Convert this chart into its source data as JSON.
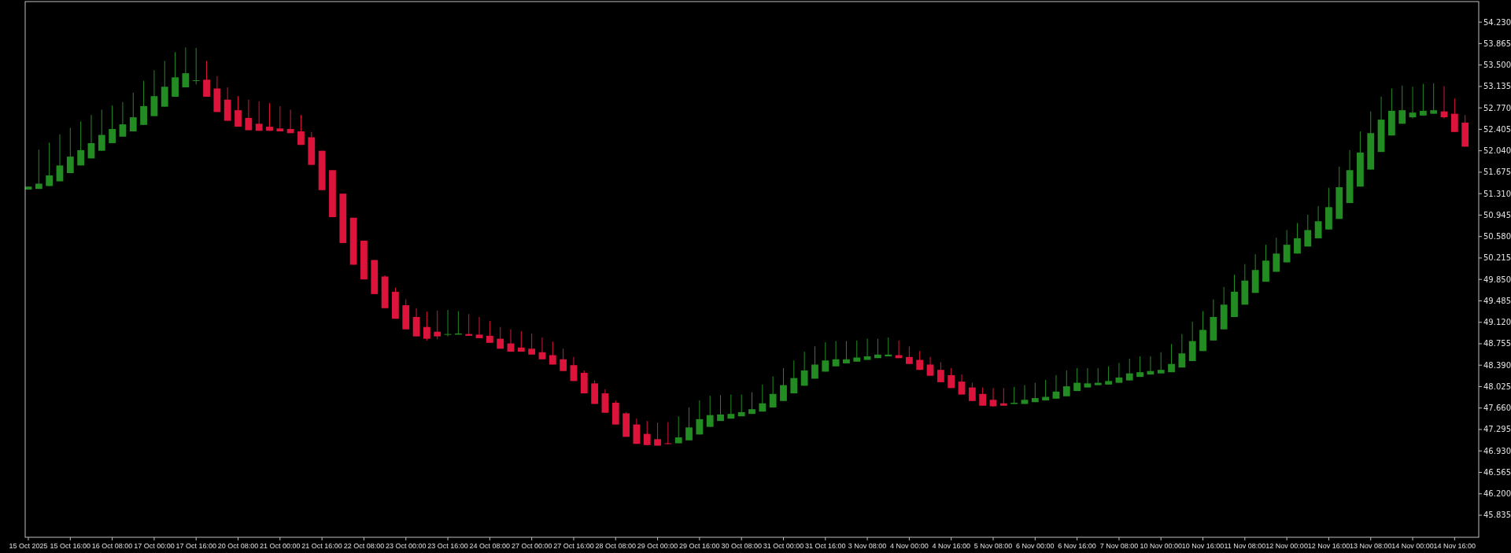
{
  "chart_data": {
    "type": "candlestick",
    "categories": [
      "15 Oct 2025",
      null,
      null,
      null,
      "15 Oct 16:00",
      null,
      null,
      null,
      "16 Oct 08:00",
      null,
      null,
      null,
      "17 Oct 00:00",
      null,
      null,
      null,
      "17 Oct 16:00",
      null,
      null,
      null,
      "20 Oct 08:00",
      null,
      null,
      null,
      "21 Oct 00:00",
      null,
      null,
      null,
      "21 Oct 16:00",
      null,
      null,
      null,
      "22 Oct 08:00",
      null,
      null,
      null,
      "23 Oct 00:00",
      null,
      null,
      null,
      "23 Oct 16:00",
      null,
      null,
      null,
      "24 Oct 08:00",
      null,
      null,
      null,
      "27 Oct 00:00",
      null,
      null,
      null,
      "27 Oct 16:00",
      null,
      null,
      null,
      "28 Oct 08:00",
      null,
      null,
      null,
      "29 Oct 00:00",
      null,
      null,
      null,
      "29 Oct 16:00",
      null,
      null,
      null,
      "30 Oct 08:00",
      null,
      null,
      null,
      "31 Oct 00:00",
      null,
      null,
      null,
      "31 Oct 16:00",
      null,
      null,
      null,
      "3 Nov 08:00",
      null,
      null,
      null,
      "4 Nov 00:00",
      null,
      null,
      null,
      "4 Nov 16:00",
      null,
      null,
      null,
      "5 Nov 08:00",
      null,
      null,
      null,
      "6 Nov 00:00",
      null,
      null,
      null,
      "6 Nov 16:00",
      null,
      null,
      null,
      "7 Nov 08:00",
      null,
      null,
      null,
      "10 Nov 00:00",
      null,
      null,
      null,
      "10 Nov 16:00",
      null,
      null,
      null,
      "11 Nov 08:00",
      null,
      null,
      null,
      "12 Nov 00:00",
      null,
      null,
      null,
      "12 Nov 16:00",
      null,
      null,
      null,
      "13 Nov 08:00",
      null,
      null,
      null,
      "14 Nov 00:00",
      null,
      null,
      null,
      "14 Nov 16:00",
      null
    ],
    "ohlc": [
      [
        51.38,
        51.43,
        51.38,
        51.43
      ],
      [
        51.39,
        52.06,
        51.39,
        51.48
      ],
      [
        51.44,
        52.18,
        51.44,
        51.62
      ],
      [
        51.52,
        52.32,
        51.52,
        51.79
      ],
      [
        51.66,
        52.43,
        51.66,
        51.94
      ],
      [
        51.79,
        52.54,
        51.79,
        52.05
      ],
      [
        51.91,
        52.65,
        51.91,
        52.17
      ],
      [
        52.04,
        52.74,
        52.04,
        52.31
      ],
      [
        52.17,
        52.81,
        52.17,
        52.41
      ],
      [
        52.28,
        52.87,
        52.28,
        52.49
      ],
      [
        52.37,
        53.03,
        52.37,
        52.61
      ],
      [
        52.48,
        53.23,
        52.48,
        52.8
      ],
      [
        52.63,
        53.41,
        52.63,
        52.97
      ],
      [
        52.79,
        53.57,
        52.79,
        53.13
      ],
      [
        52.96,
        53.72,
        52.96,
        53.29
      ],
      [
        53.12,
        53.8,
        53.12,
        53.36
      ],
      [
        53.23,
        53.79,
        53.17,
        53.24
      ],
      [
        53.25,
        53.57,
        52.96,
        52.96
      ],
      [
        53.1,
        53.31,
        52.7,
        52.7
      ],
      [
        52.91,
        53.12,
        52.55,
        52.55
      ],
      [
        52.73,
        52.97,
        52.45,
        52.45
      ],
      [
        52.6,
        52.91,
        52.39,
        52.39
      ],
      [
        52.5,
        52.88,
        52.38,
        52.38
      ],
      [
        52.45,
        52.85,
        52.38,
        52.38
      ],
      [
        52.42,
        52.8,
        52.37,
        52.37
      ],
      [
        52.41,
        52.74,
        52.34,
        52.34
      ],
      [
        52.37,
        52.65,
        52.14,
        52.14
      ],
      [
        52.27,
        52.36,
        51.8,
        51.8
      ],
      [
        52.04,
        52.04,
        51.37,
        51.37
      ],
      [
        51.71,
        51.71,
        50.91,
        50.91
      ],
      [
        51.31,
        51.31,
        50.47,
        50.47
      ],
      [
        50.9,
        50.9,
        50.1,
        50.1
      ],
      [
        50.51,
        50.51,
        49.85,
        49.85
      ],
      [
        50.18,
        50.18,
        49.6,
        49.6
      ],
      [
        49.9,
        49.92,
        49.36,
        49.36
      ],
      [
        49.64,
        49.71,
        49.18,
        49.18
      ],
      [
        49.41,
        49.51,
        49.0,
        49.0
      ],
      [
        49.21,
        49.36,
        48.88,
        48.88
      ],
      [
        49.04,
        49.3,
        48.81,
        48.84
      ],
      [
        48.96,
        49.32,
        48.83,
        48.88
      ],
      [
        48.91,
        49.33,
        48.88,
        48.92
      ],
      [
        48.91,
        49.31,
        48.91,
        48.93
      ],
      [
        48.92,
        49.26,
        48.89,
        48.89
      ],
      [
        48.91,
        49.21,
        48.85,
        48.85
      ],
      [
        48.89,
        49.14,
        48.77,
        48.77
      ],
      [
        48.84,
        49.04,
        48.67,
        48.67
      ],
      [
        48.76,
        49.0,
        48.62,
        48.62
      ],
      [
        48.69,
        48.97,
        48.62,
        48.62
      ],
      [
        48.67,
        48.93,
        48.57,
        48.57
      ],
      [
        48.61,
        48.86,
        48.49,
        48.49
      ],
      [
        48.56,
        48.79,
        48.4,
        48.4
      ],
      [
        48.49,
        48.67,
        48.29,
        48.29
      ],
      [
        48.39,
        48.53,
        48.12,
        48.12
      ],
      [
        48.26,
        48.3,
        47.91,
        47.91
      ],
      [
        48.08,
        48.13,
        47.73,
        47.73
      ],
      [
        47.91,
        47.98,
        47.58,
        47.58
      ],
      [
        47.75,
        47.79,
        47.38,
        47.38
      ],
      [
        47.57,
        47.59,
        47.17,
        47.17
      ],
      [
        47.38,
        47.48,
        47.05,
        47.05
      ],
      [
        47.22,
        47.44,
        47.03,
        47.03
      ],
      [
        47.13,
        47.41,
        47.02,
        47.02
      ],
      [
        47.06,
        47.42,
        47.04,
        47.05
      ],
      [
        47.06,
        47.52,
        47.06,
        47.16
      ],
      [
        47.11,
        47.67,
        47.11,
        47.33
      ],
      [
        47.21,
        47.79,
        47.21,
        47.47
      ],
      [
        47.34,
        47.87,
        47.34,
        47.54
      ],
      [
        47.44,
        47.88,
        47.44,
        47.55
      ],
      [
        47.48,
        47.89,
        47.48,
        47.56
      ],
      [
        47.52,
        47.89,
        47.52,
        47.59
      ],
      [
        47.56,
        47.93,
        47.56,
        47.64
      ],
      [
        47.6,
        48.06,
        47.6,
        47.74
      ],
      [
        47.67,
        48.2,
        47.67,
        47.9
      ],
      [
        47.78,
        48.34,
        47.78,
        48.05
      ],
      [
        47.91,
        48.47,
        47.91,
        48.17
      ],
      [
        48.04,
        48.62,
        48.04,
        48.3
      ],
      [
        48.16,
        48.71,
        48.16,
        48.4
      ],
      [
        48.28,
        48.78,
        48.28,
        48.47
      ],
      [
        48.37,
        48.8,
        48.37,
        48.49
      ],
      [
        48.42,
        48.8,
        48.42,
        48.49
      ],
      [
        48.45,
        48.81,
        48.45,
        48.52
      ],
      [
        48.48,
        48.84,
        48.48,
        48.54
      ],
      [
        48.51,
        48.84,
        48.51,
        48.57
      ],
      [
        48.54,
        48.86,
        48.54,
        48.57
      ],
      [
        48.56,
        48.81,
        48.51,
        48.51
      ],
      [
        48.53,
        48.71,
        48.41,
        48.41
      ],
      [
        48.48,
        48.63,
        48.31,
        48.31
      ],
      [
        48.4,
        48.53,
        48.21,
        48.21
      ],
      [
        48.31,
        48.44,
        48.1,
        48.1
      ],
      [
        48.22,
        48.34,
        48.0,
        48.0
      ],
      [
        48.11,
        48.23,
        47.89,
        47.89
      ],
      [
        48.01,
        48.09,
        47.78,
        47.78
      ],
      [
        47.9,
        48.01,
        47.7,
        47.7
      ],
      [
        47.8,
        48.0,
        47.68,
        47.69
      ],
      [
        47.74,
        48.0,
        47.7,
        47.7
      ],
      [
        47.73,
        48.02,
        47.73,
        47.75
      ],
      [
        47.73,
        48.05,
        47.73,
        47.8
      ],
      [
        47.76,
        48.09,
        47.76,
        47.83
      ],
      [
        47.79,
        48.14,
        47.79,
        47.85
      ],
      [
        47.82,
        48.22,
        47.82,
        47.94
      ],
      [
        47.86,
        48.3,
        47.86,
        48.03
      ],
      [
        47.95,
        48.34,
        47.95,
        48.09
      ],
      [
        48.01,
        48.34,
        48.01,
        48.08
      ],
      [
        48.05,
        48.34,
        48.05,
        48.09
      ],
      [
        48.06,
        48.37,
        48.06,
        48.12
      ],
      [
        48.09,
        48.43,
        48.09,
        48.18
      ],
      [
        48.13,
        48.5,
        48.13,
        48.25
      ],
      [
        48.19,
        48.54,
        48.19,
        48.27
      ],
      [
        48.23,
        48.54,
        48.23,
        48.29
      ],
      [
        48.25,
        48.61,
        48.25,
        48.31
      ],
      [
        48.27,
        48.75,
        48.27,
        48.41
      ],
      [
        48.35,
        48.92,
        48.35,
        48.59
      ],
      [
        48.46,
        49.13,
        48.46,
        48.8
      ],
      [
        48.63,
        49.31,
        48.63,
        48.99
      ],
      [
        48.81,
        49.51,
        48.81,
        49.21
      ],
      [
        49.0,
        49.72,
        49.0,
        49.42
      ],
      [
        49.21,
        49.93,
        49.21,
        49.64
      ],
      [
        49.42,
        50.11,
        49.42,
        49.83
      ],
      [
        49.62,
        50.28,
        49.62,
        50.01
      ],
      [
        49.81,
        50.44,
        49.81,
        50.17
      ],
      [
        49.98,
        50.56,
        49.98,
        50.29
      ],
      [
        50.14,
        50.69,
        50.14,
        50.44
      ],
      [
        50.29,
        50.81,
        50.29,
        50.55
      ],
      [
        50.41,
        50.95,
        50.41,
        50.69
      ],
      [
        50.55,
        51.1,
        50.55,
        50.84
      ],
      [
        50.7,
        51.41,
        50.7,
        51.08
      ],
      [
        50.88,
        51.77,
        50.88,
        51.42
      ],
      [
        51.15,
        52.05,
        51.15,
        51.71
      ],
      [
        51.43,
        52.37,
        51.43,
        52.01
      ],
      [
        51.72,
        52.71,
        51.72,
        52.34
      ],
      [
        52.02,
        52.96,
        52.02,
        52.57
      ],
      [
        52.3,
        53.1,
        52.3,
        52.72
      ],
      [
        52.5,
        53.15,
        52.5,
        52.73
      ],
      [
        52.61,
        53.13,
        52.59,
        52.69
      ],
      [
        52.64,
        53.18,
        52.64,
        52.72
      ],
      [
        52.67,
        53.19,
        52.67,
        52.73
      ],
      [
        52.71,
        53.14,
        52.59,
        52.61
      ],
      [
        52.67,
        52.93,
        52.36,
        52.36
      ],
      [
        52.52,
        52.65,
        52.11,
        52.11
      ]
    ],
    "colors": [
      "#228b22",
      "#228b22",
      "#228b22",
      "#228b22",
      "#228b22",
      "#228b22",
      "#228b22",
      "#228b22",
      "#228b22",
      "#228b22",
      "#228b22",
      "#228b22",
      "#228b22",
      "#228b22",
      "#228b22",
      "#228b22",
      "#228b22",
      "#dc143c",
      "#dc143c",
      "#dc143c",
      "#dc143c",
      "#dc143c",
      "#dc143c",
      "#dc143c",
      "#dc143c",
      "#dc143c",
      "#dc143c",
      "#dc143c",
      "#dc143c",
      "#dc143c",
      "#dc143c",
      "#dc143c",
      "#dc143c",
      "#dc143c",
      "#dc143c",
      "#dc143c",
      "#dc143c",
      "#dc143c",
      "#dc143c",
      "#dc143c",
      "#228b22",
      "#228b22",
      "#dc143c",
      "#dc143c",
      "#dc143c",
      "#dc143c",
      "#dc143c",
      "#dc143c",
      "#dc143c",
      "#dc143c",
      "#dc143c",
      "#dc143c",
      "#dc143c",
      "#dc143c",
      "#dc143c",
      "#dc143c",
      "#dc143c",
      "#dc143c",
      "#dc143c",
      "#dc143c",
      "#dc143c",
      "#dc143c",
      "#228b22",
      "#228b22",
      "#228b22",
      "#228b22",
      "#228b22",
      "#228b22",
      "#228b22",
      "#228b22",
      "#228b22",
      "#228b22",
      "#228b22",
      "#228b22",
      "#228b22",
      "#228b22",
      "#228b22",
      "#228b22",
      "#228b22",
      "#228b22",
      "#228b22",
      "#228b22",
      "#228b22",
      "#dc143c",
      "#dc143c",
      "#dc143c",
      "#dc143c",
      "#dc143c",
      "#dc143c",
      "#dc143c",
      "#dc143c",
      "#dc143c",
      "#dc143c",
      "#dc143c",
      "#228b22",
      "#228b22",
      "#228b22",
      "#228b22",
      "#228b22",
      "#228b22",
      "#228b22",
      "#228b22",
      "#228b22",
      "#228b22",
      "#228b22",
      "#228b22",
      "#228b22",
      "#228b22",
      "#228b22",
      "#228b22",
      "#228b22",
      "#228b22",
      "#228b22",
      "#228b22",
      "#228b22",
      "#228b22",
      "#228b22",
      "#228b22",
      "#228b22",
      "#228b22",
      "#228b22",
      "#228b22",
      "#228b22",
      "#228b22",
      "#228b22",
      "#228b22",
      "#228b22",
      "#228b22",
      "#228b22",
      "#228b22",
      "#228b22",
      "#228b22",
      "#228b22",
      "#228b22",
      "#228b22",
      "#dc143c",
      "#dc143c",
      "#dc143c"
    ],
    "ylim": [
      45.46,
      54.58
    ],
    "yticks": [
      {
        "value": 54.23,
        "label": "54.230"
      },
      {
        "value": 53.865,
        "label": "53.865"
      },
      {
        "value": 53.5,
        "label": "53.500"
      },
      {
        "value": 53.135,
        "label": "53.135"
      },
      {
        "value": 52.77,
        "label": "52.770"
      },
      {
        "value": 52.405,
        "label": "52.405"
      },
      {
        "value": 52.04,
        "label": "52.040"
      },
      {
        "value": 51.675,
        "label": "51.675"
      },
      {
        "value": 51.31,
        "label": "51.310"
      },
      {
        "value": 50.945,
        "label": "50.945"
      },
      {
        "value": 50.58,
        "label": "50.580"
      },
      {
        "value": 50.215,
        "label": "50.215"
      },
      {
        "value": 49.85,
        "label": "49.850"
      },
      {
        "value": 49.485,
        "label": "49.485"
      },
      {
        "value": 49.12,
        "label": "49.120"
      },
      {
        "value": 48.755,
        "label": "48.755"
      },
      {
        "value": 48.39,
        "label": "48.390"
      },
      {
        "value": 48.025,
        "label": "48.025"
      },
      {
        "value": 47.66,
        "label": "47.660"
      },
      {
        "value": 47.295,
        "label": "47.295"
      },
      {
        "value": 46.93,
        "label": "46.930"
      },
      {
        "value": 46.565,
        "label": "46.565"
      },
      {
        "value": 46.2,
        "label": "46.200"
      },
      {
        "value": 45.835,
        "label": "45.835"
      }
    ]
  }
}
